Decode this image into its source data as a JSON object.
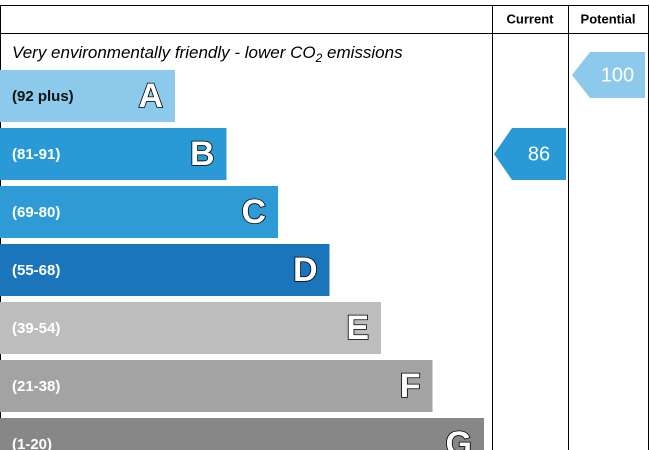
{
  "header": {
    "current": "Current",
    "potential": "Potential"
  },
  "top_note": {
    "text": "Very environmentally friendly - lower CO",
    "subscript": "2",
    "suffix": " emissions"
  },
  "bands": [
    {
      "range": "(92 plus)",
      "letter": "A",
      "color": "#8dc9ea",
      "text_color": "#111111"
    },
    {
      "range": "(81-91)",
      "letter": "B",
      "color": "#2a9ad7",
      "text_color": "#ffffff"
    },
    {
      "range": "(69-80)",
      "letter": "C",
      "color": "#2e9bd6",
      "text_color": "#ffffff"
    },
    {
      "range": "(55-68)",
      "letter": "D",
      "color": "#1b75bb",
      "text_color": "#ffffff"
    },
    {
      "range": "(39-54)",
      "letter": "E",
      "color": "#bdbdbd",
      "text_color": "#ffffff"
    },
    {
      "range": "(21-38)",
      "letter": "F",
      "color": "#a3a3a3",
      "text_color": "#ffffff"
    },
    {
      "range": "(1-20)",
      "letter": "G",
      "color": "#878787",
      "text_color": "#ffffff"
    }
  ],
  "current": {
    "value": 86,
    "color": "#2a9ad7"
  },
  "potential": {
    "value": 100,
    "color": "#8dc9ea"
  }
}
